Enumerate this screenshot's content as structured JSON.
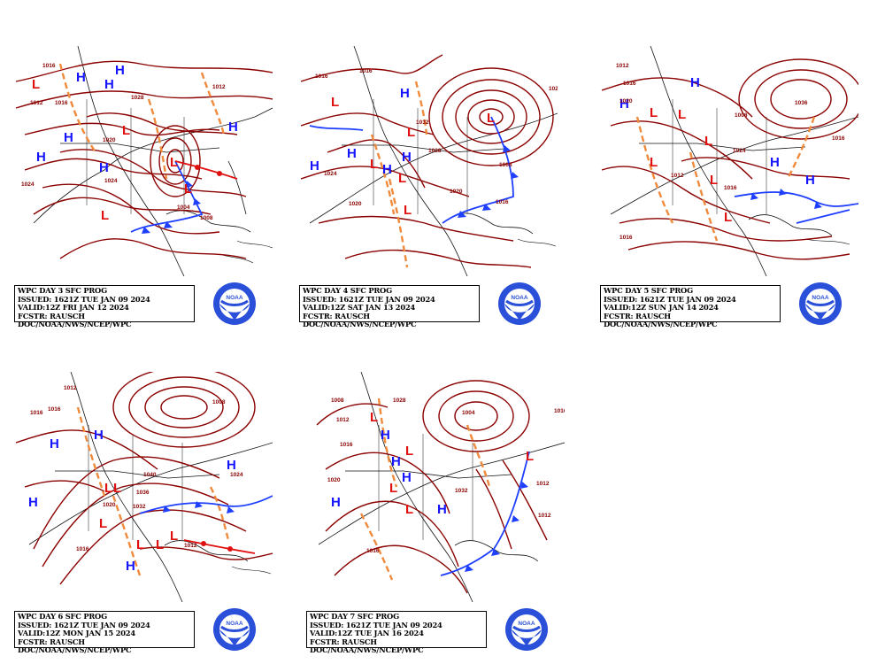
{
  "colors": {
    "isobar": "#8b0000",
    "high": "#1414ff",
    "low": "#e01010",
    "trough": "#f08a3c",
    "cold_front": "#1f3fff",
    "warm_front": "#e01010",
    "land_outline": "#111111",
    "noaa_blue": "#2a4fd8"
  },
  "panels": [
    {
      "caption": {
        "line1": "WPC DAY 3 SFC PROG",
        "line2": "ISSUED: 1621Z TUE JAN 09 2024",
        "line3": "VALID:12Z FRI JAN 12 2024",
        "line4": "FCSTR: RAUSCH",
        "line5": "DOC/NOAA/NWS/NCEP/WPC"
      },
      "highs": [
        "H",
        "H",
        "H",
        "H",
        "H",
        "H",
        "H"
      ],
      "lows": [
        "L",
        "L",
        "L",
        "L",
        "L"
      ],
      "isobar_labels": [
        "1016",
        "1012",
        "1024",
        "1016",
        "1020",
        "1024",
        "1008",
        "1004",
        "1012",
        "1028"
      ]
    },
    {
      "caption": {
        "line1": "WPC DAY 4 SFC PROG",
        "line2": "ISSUED: 1621Z TUE JAN 09 2024",
        "line3": "VALID:12Z SAT JAN 13 2024",
        "line4": "FCSTR: RAUSCH",
        "line5": "DOC/NOAA/NWS/NCEP/WPC"
      },
      "highs": [
        "H",
        "H",
        "H",
        "H",
        "H"
      ],
      "lows": [
        "L",
        "L",
        "L",
        "L",
        "L",
        "L"
      ],
      "isobar_labels": [
        "1024",
        "1016",
        "1020",
        "1016",
        "1008",
        "1020",
        "1032",
        "1028",
        "1020",
        "1016"
      ]
    },
    {
      "caption": {
        "line1": "WPC DAY 5 SFC PROG",
        "line2": "ISSUED: 1621Z TUE JAN 09 2024",
        "line3": "VALID:12Z SUN JAN 14 2024",
        "line4": "FCSTR: RAUSCH",
        "line5": "DOC/NOAA/NWS/NCEP/WPC"
      },
      "highs": [
        "H",
        "H",
        "H",
        "H"
      ],
      "lows": [
        "L",
        "L",
        "L",
        "L",
        "L",
        "L"
      ],
      "isobar_labels": [
        "1012",
        "1020",
        "1016",
        "1012",
        "1016",
        "1016",
        "1024",
        "1036",
        "1008",
        "1016"
      ]
    },
    {
      "caption": {
        "line1": "WPC DAY 6 SFC PROG",
        "line2": "ISSUED: 1621Z TUE JAN 09 2024",
        "line3": "VALID:12Z MON JAN 15 2024",
        "line4": "FCSTR: RAUSCH",
        "line5": "DOC/NOAA/NWS/NCEP/WPC"
      },
      "highs": [
        "H",
        "H",
        "H",
        "H",
        "H"
      ],
      "lows": [
        "L",
        "L",
        "L",
        "L",
        "L",
        "L"
      ],
      "isobar_labels": [
        "1016",
        "1016",
        "1012",
        "1008",
        "1040",
        "1036",
        "1032",
        "1024",
        "1020",
        "1016",
        "1012"
      ]
    },
    {
      "caption": {
        "line1": "WPC DAY 7 SFC PROG",
        "line2": "ISSUED: 1621Z TUE JAN 09 2024",
        "line3": "VALID:12Z TUE JAN 16 2024",
        "line4": "FCSTR: RAUSCH",
        "line5": "DOC/NOAA/NWS/NCEP/WPC"
      },
      "highs": [
        "H",
        "H",
        "H",
        "H",
        "H"
      ],
      "lows": [
        "L",
        "L",
        "L",
        "L",
        "L"
      ],
      "isobar_labels": [
        "1008",
        "1012",
        "1016",
        "1028",
        "1004",
        "1016",
        "1012",
        "1020",
        "1032",
        "1016",
        "1012"
      ]
    }
  ],
  "logo": {
    "text": "NOAA"
  }
}
